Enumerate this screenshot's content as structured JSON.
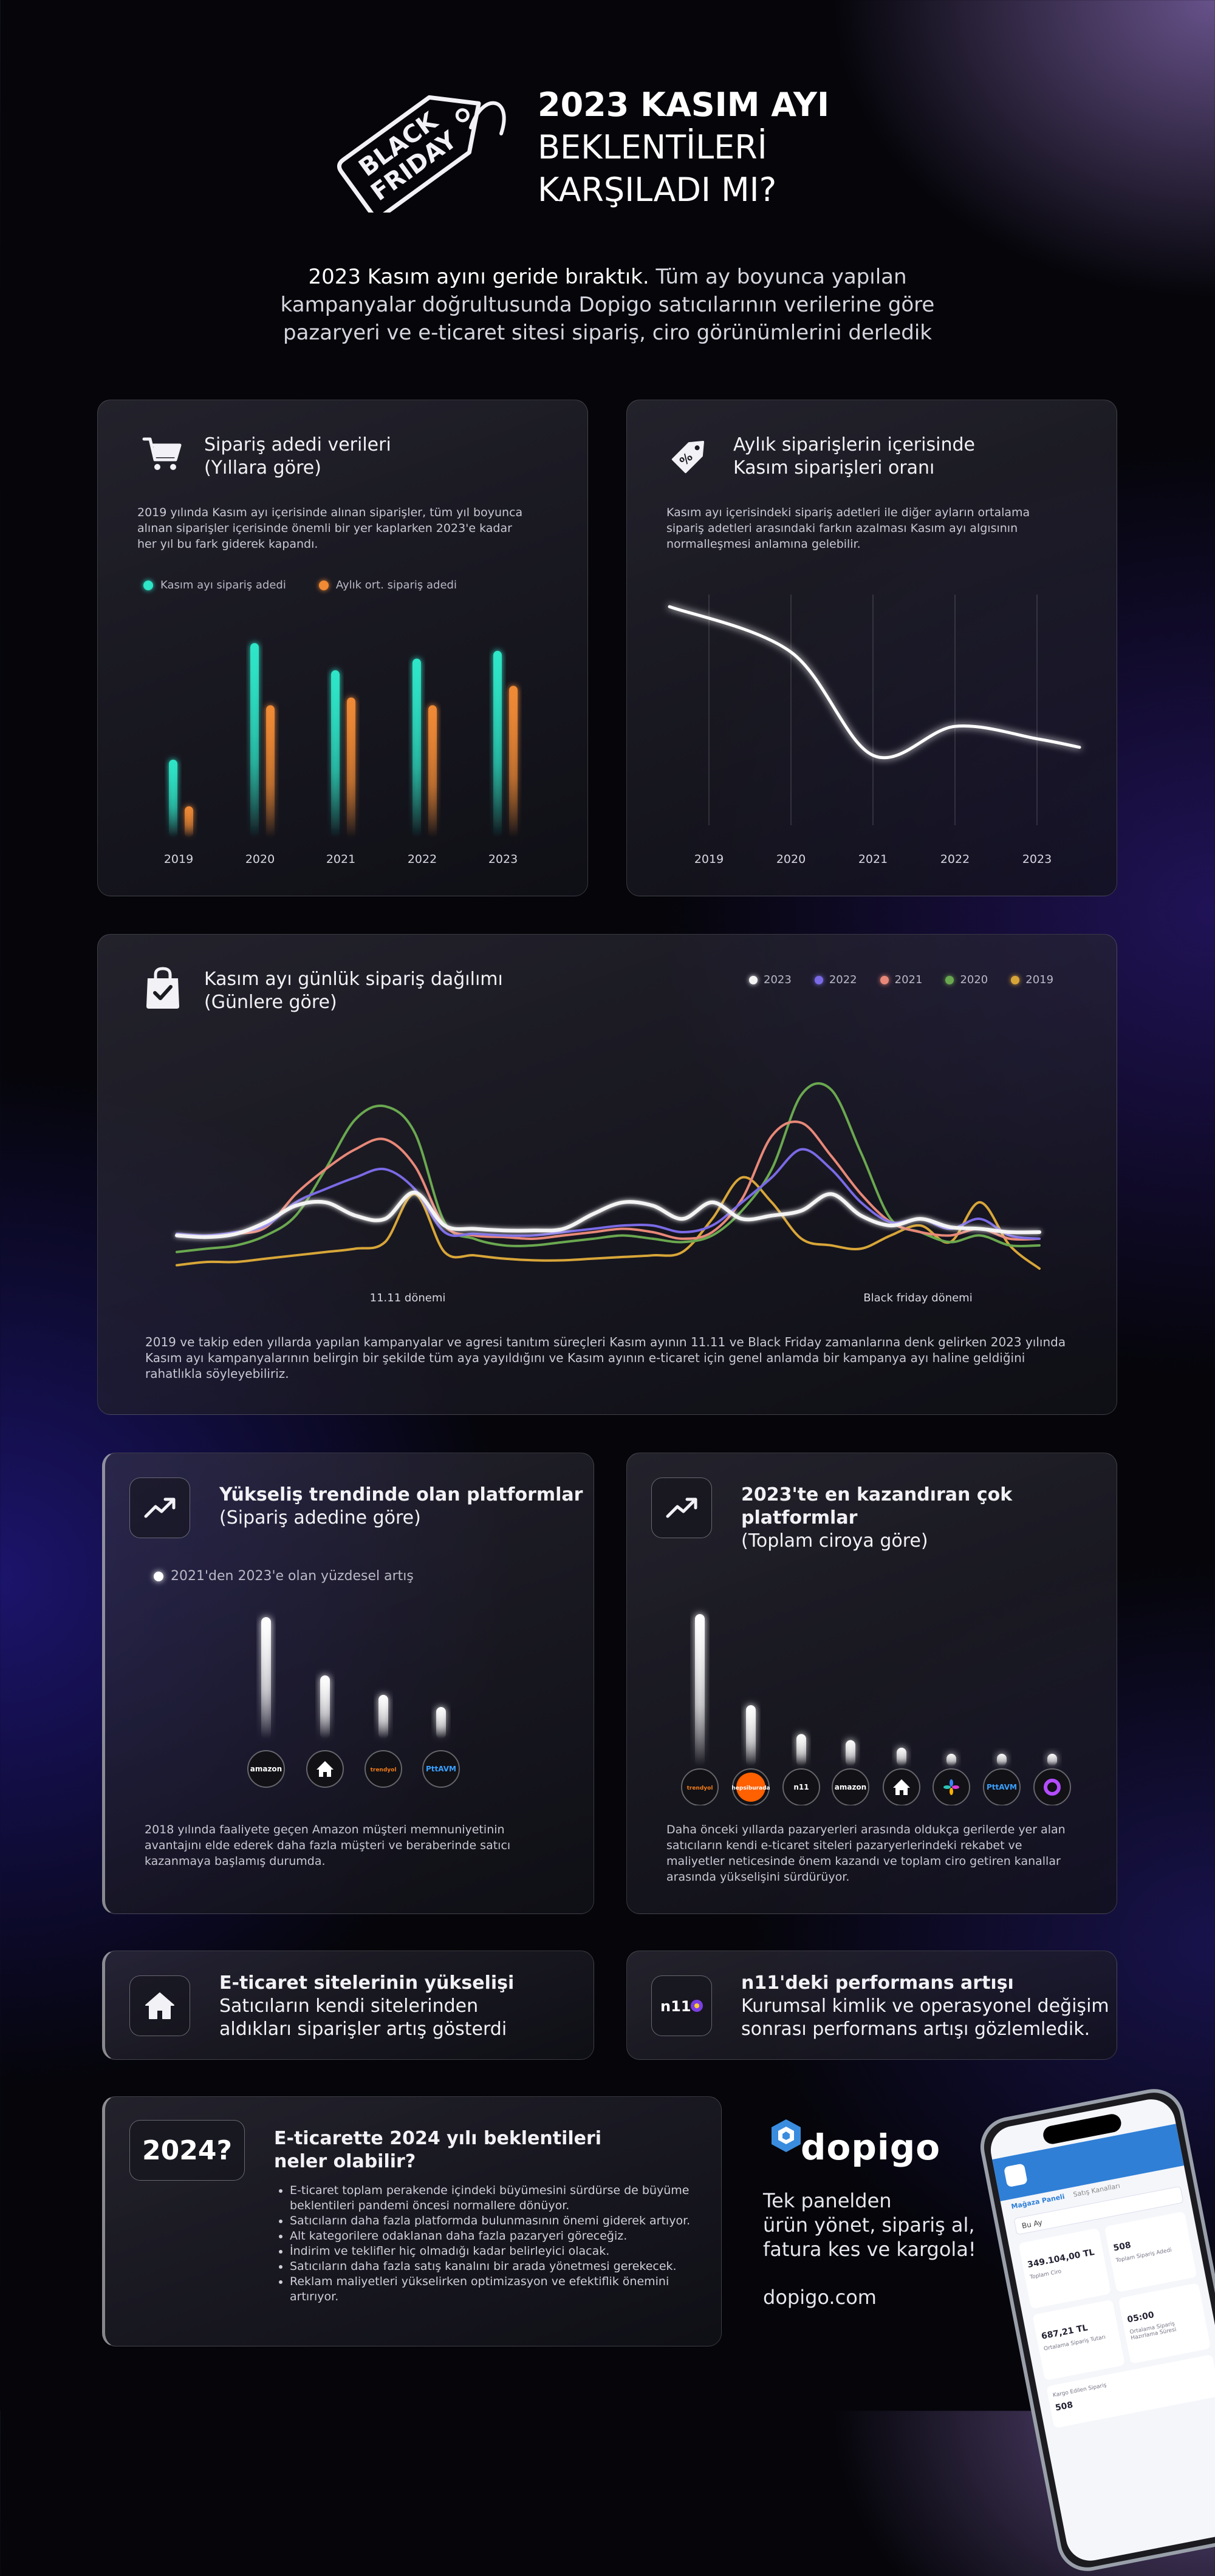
{
  "header": {
    "badge_line1": "BLACK",
    "badge_line2": "FRIDAY",
    "title_line1": "2023 KASIM AYI",
    "title_line2": "BEKLENTİLERİ",
    "title_line3": "KARŞILADI MI?",
    "intro_bold": "2023 Kasım ayını geride bıraktık.",
    "intro_rest1": " Tüm ay boyunca yapılan",
    "intro_line2": "kampanyalar doğrultusunda Dopigo satıcılarının verilerine göre",
    "intro_line3": "pazaryeri ve e-ticaret sitesi sipariş, ciro görünümlerini derledik"
  },
  "panel_orders": {
    "icon": "cart-icon",
    "title1": "Sipariş adedi verileri",
    "title2": "(Yıllara göre)",
    "desc1": "2019 yılında Kasım ayı içerisinde alınan siparişler, tüm yıl boyunca",
    "desc2": "alınan siparişler içerisinde önemli bir yer kaplarken 2023'e kadar",
    "desc3": "her yıl bu fark giderek kapandı.",
    "legend1": "Kasım ayı sipariş adedi",
    "legend2": "Aylık ort. sipariş adedi"
  },
  "panel_ratio": {
    "icon": "price-tag-icon",
    "title1": "Aylık siparişlerin içerisinde",
    "title2": "Kasım siparişleri oranı",
    "desc1": "Kasım ayı içerisindeki sipariş adetleri ile diğer ayların ortalama",
    "desc2": "sipariş adetleri arasındaki farkın azalması Kasım ayı algısının",
    "desc3": "normalleşmesi anlamına gelebilir."
  },
  "panel_daily": {
    "icon": "shopping-bag-icon",
    "title1": "Kasım ayı günlük sipariş dağılımı",
    "title2": "(Günlere göre)",
    "label_1111": "11.11 dönemi",
    "label_bf": "Black friday dönemi",
    "desc1": "2019 ve takip eden yıllarda yapılan kampanyalar ve agresi tanıtım süreçleri Kasım ayının 11.11 ve Black Friday zamanlarına denk gelirken 2023 yılında",
    "desc2": "Kasım ayı kampanyalarının belirgin bir şekilde tüm aya yayıldığını ve Kasım ayının e-ticaret için genel anlamda bir kampanya ayı haline geldiğini",
    "desc3": "rahatlıkla söyleyebiliriz."
  },
  "panel_rising": {
    "icon": "trend-up-icon",
    "title1": "Yükseliş trendinde olan platformlar",
    "title2": "(Sipariş adedine göre)",
    "legend": "2021'den 2023'e olan yüzdesel artış",
    "desc1": "2018 yılında faaliyete geçen Amazon müşteri memnuniyetinin",
    "desc2": "avantajını elde ederek daha fazla müşteri ve beraberinde satıcı",
    "desc3": "kazanmaya başlamış durumda.",
    "platforms": [
      "amazon",
      "home",
      "trendyol",
      "PttAVM"
    ]
  },
  "panel_top": {
    "icon": "trend-up-icon",
    "title1": "2023'te en kazandıran çok platformlar",
    "title2": "(Toplam ciroya göre)",
    "desc1": "Daha önceki yıllarda pazaryerleri arasında oldukça gerilerde yer alan",
    "desc2": "satıcıların kendi e-ticaret siteleri pazaryerlerindeki rekabet ve",
    "desc3": "maliyetler neticesinde önem kazandı ve toplam ciro getiren kanallar",
    "desc4": "arasında yükselişini sürdürüyor.",
    "platforms": [
      "trendyol",
      "hepsiburada",
      "n11",
      "amazon",
      "home",
      "çiçeksepeti",
      "PttAVM",
      "pazarama"
    ]
  },
  "panel_ecom": {
    "icon": "home-icon",
    "title": "E-ticaret sitelerinin yükselişi",
    "desc1": "Satıcıların kendi sitelerinden",
    "desc2": "aldıkları siparişler artış gösterdi"
  },
  "panel_n11": {
    "logo": "n11",
    "title": "n11'deki performans artışı",
    "desc1": "Kurumsal kimlik ve operasyonel değişim",
    "desc2": "sonrası performans artışı gözlemledik."
  },
  "panel_2024": {
    "badge": "2024?",
    "title1": "E-ticarette 2024 yılı beklentileri",
    "title2": "neler olabilir?",
    "bullets": [
      "E-ticaret toplam perakende içindeki büyümesini sürdürse de büyüme beklentileri pandemi öncesi normallere dönüyor.",
      "Satıcıların daha fazla platformda bulunmasının önemi giderek artıyor.",
      "Alt kategorilere odaklanan daha fazla pazaryeri göreceğiz.",
      "İndirim ve teklifler hiç olmadığı kadar belirleyici olacak.",
      "Satıcıların daha fazla satış kanalını bir arada yönetmesi gerekecek.",
      "Reklam maliyetleri yükselirken optimizasyon ve efektiflik önemini artırıyor."
    ]
  },
  "promo": {
    "brand": "dopigo",
    "line1": "Tek panelden",
    "line2": "ürün yönet, sipariş al,",
    "line3": "fatura kes ve kargola!",
    "url": "dopigo.com"
  },
  "phone": {
    "tab1": "Mağaza Paneli",
    "tab2": "Satış Kanalları",
    "dropdown": "Bu Ay",
    "stat1_value": "349.104,00 TL",
    "stat1_label": "Toplam Ciro",
    "stat2_value": "508",
    "stat2_label": "Toplam Sipariş Adedi",
    "stat3_value": "687,21 TL",
    "stat3_label": "Ortalama Sipariş Tutarı",
    "stat4_value": "05:00",
    "stat4_label": "Ortalama Sipariş Hazırlama Süresi",
    "stat5_value": "508",
    "stat5_label": "Kargo Edilen Sipariş"
  },
  "chart_data": [
    {
      "type": "bar",
      "categories": [
        "2019",
        "2020",
        "2021",
        "2022",
        "2023"
      ],
      "series": [
        {
          "name": "Kasım ayı sipariş adedi",
          "color": "#2ee6c8",
          "values": [
            40,
            100,
            86,
            92,
            96
          ]
        },
        {
          "name": "Aylık ort. sipariş adedi",
          "color": "#f08a35",
          "values": [
            16,
            68,
            72,
            68,
            78
          ]
        }
      ]
    },
    {
      "type": "line",
      "x": [
        "2019",
        "2020",
        "2021",
        "2022",
        "2023"
      ],
      "series": [
        {
          "color": "#ffffff",
          "values": [
            100,
            78,
            28,
            42,
            36
          ]
        }
      ]
    },
    {
      "type": "line",
      "x": [
        1,
        2,
        3,
        4,
        5,
        6,
        7,
        8,
        9,
        10,
        11,
        12,
        13,
        14,
        15,
        16,
        17,
        18,
        19,
        20,
        21,
        22,
        23,
        24,
        25,
        26,
        27,
        28,
        29,
        30
      ],
      "series": [
        {
          "name": "2023",
          "color": "#f4f4f4",
          "values": [
            20,
            19,
            21,
            28,
            38,
            40,
            32,
            30,
            46,
            26,
            24,
            23,
            23,
            24,
            33,
            40,
            38,
            30,
            40,
            30,
            32,
            35,
            45,
            32,
            26,
            30,
            25,
            24,
            22,
            22
          ]
        },
        {
          "name": "2022",
          "color": "#7a6ae6",
          "values": [
            21,
            20,
            22,
            26,
            40,
            48,
            55,
            60,
            48,
            22,
            21,
            20,
            20,
            22,
            24,
            26,
            26,
            22,
            26,
            40,
            55,
            72,
            60,
            40,
            28,
            30,
            24,
            30,
            20,
            18
          ]
        },
        {
          "name": "2021",
          "color": "#e88878",
          "values": [
            20,
            20,
            21,
            25,
            45,
            60,
            72,
            78,
            62,
            26,
            20,
            19,
            18,
            20,
            22,
            24,
            22,
            18,
            22,
            42,
            80,
            88,
            68,
            45,
            28,
            22,
            20,
            24,
            18,
            18
          ]
        },
        {
          "name": "2020",
          "color": "#6aa84f",
          "values": [
            10,
            12,
            14,
            20,
            32,
            60,
            90,
            98,
            82,
            28,
            18,
            14,
            14,
            16,
            18,
            20,
            18,
            16,
            20,
            35,
            60,
            105,
            108,
            70,
            30,
            22,
            16,
            20,
            14,
            14
          ]
        },
        {
          "name": "2019",
          "color": "#d8a638",
          "values": [
            2,
            4,
            4,
            6,
            8,
            10,
            12,
            16,
            45,
            10,
            8,
            6,
            5,
            5,
            6,
            7,
            8,
            10,
            30,
            55,
            40,
            18,
            14,
            12,
            20,
            26,
            16,
            40,
            14,
            0
          ]
        }
      ]
    },
    {
      "type": "bar",
      "categories": [
        "amazon",
        "home",
        "trendyol",
        "PttAVM"
      ],
      "series": [
        {
          "name": "2021'den 2023'e olan yüzdesel artış",
          "color": "#ffffff",
          "values": [
            100,
            52,
            36,
            26
          ]
        }
      ]
    },
    {
      "type": "bar",
      "categories": [
        "trendyol",
        "hepsiburada",
        "n11",
        "amazon",
        "home",
        "çiçeksepeti",
        "PttAVM",
        "pazarama"
      ],
      "series": [
        {
          "color": "#ffffff",
          "values": [
            100,
            40,
            21,
            17,
            12,
            8,
            8,
            8
          ]
        }
      ]
    }
  ],
  "colors": {
    "background": "#05050a",
    "accent_teal": "#2ee6c8",
    "accent_orange": "#f08a35",
    "dopigo_blue": "#3a8dde"
  }
}
